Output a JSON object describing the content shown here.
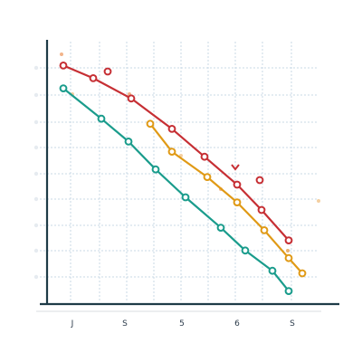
{
  "chart_data": {
    "type": "line",
    "title": "",
    "xlabel": "",
    "ylabel": "",
    "categories": [
      "J",
      "S",
      "5",
      "6",
      "S"
    ],
    "xlim": [
      0,
      10
    ],
    "ylim": [
      0,
      10
    ],
    "grid": true,
    "legend": "none",
    "series": [
      {
        "color": "#c62f34",
        "x": [
          1,
          2.1,
          3.5,
          5,
          6.2,
          7.4,
          8.3,
          9.3
        ],
        "y": [
          9.2,
          8.7,
          7.9,
          6.7,
          5.6,
          4.5,
          3.5,
          2.3
        ]
      },
      {
        "color": "#e09a16",
        "x": [
          4.2,
          5,
          6.3,
          7.4,
          8.4,
          9.3,
          9.8
        ],
        "y": [
          6.9,
          5.8,
          4.8,
          3.8,
          2.7,
          1.6,
          1.0
        ]
      },
      {
        "color": "#1a9c8c",
        "x": [
          1,
          2.4,
          3.4,
          4.4,
          5.5,
          6.8,
          7.7,
          8.7,
          9.3
        ],
        "y": [
          8.3,
          7.1,
          6.2,
          5.1,
          4.0,
          2.8,
          1.9,
          1.1,
          0.3
        ]
      }
    ]
  }
}
